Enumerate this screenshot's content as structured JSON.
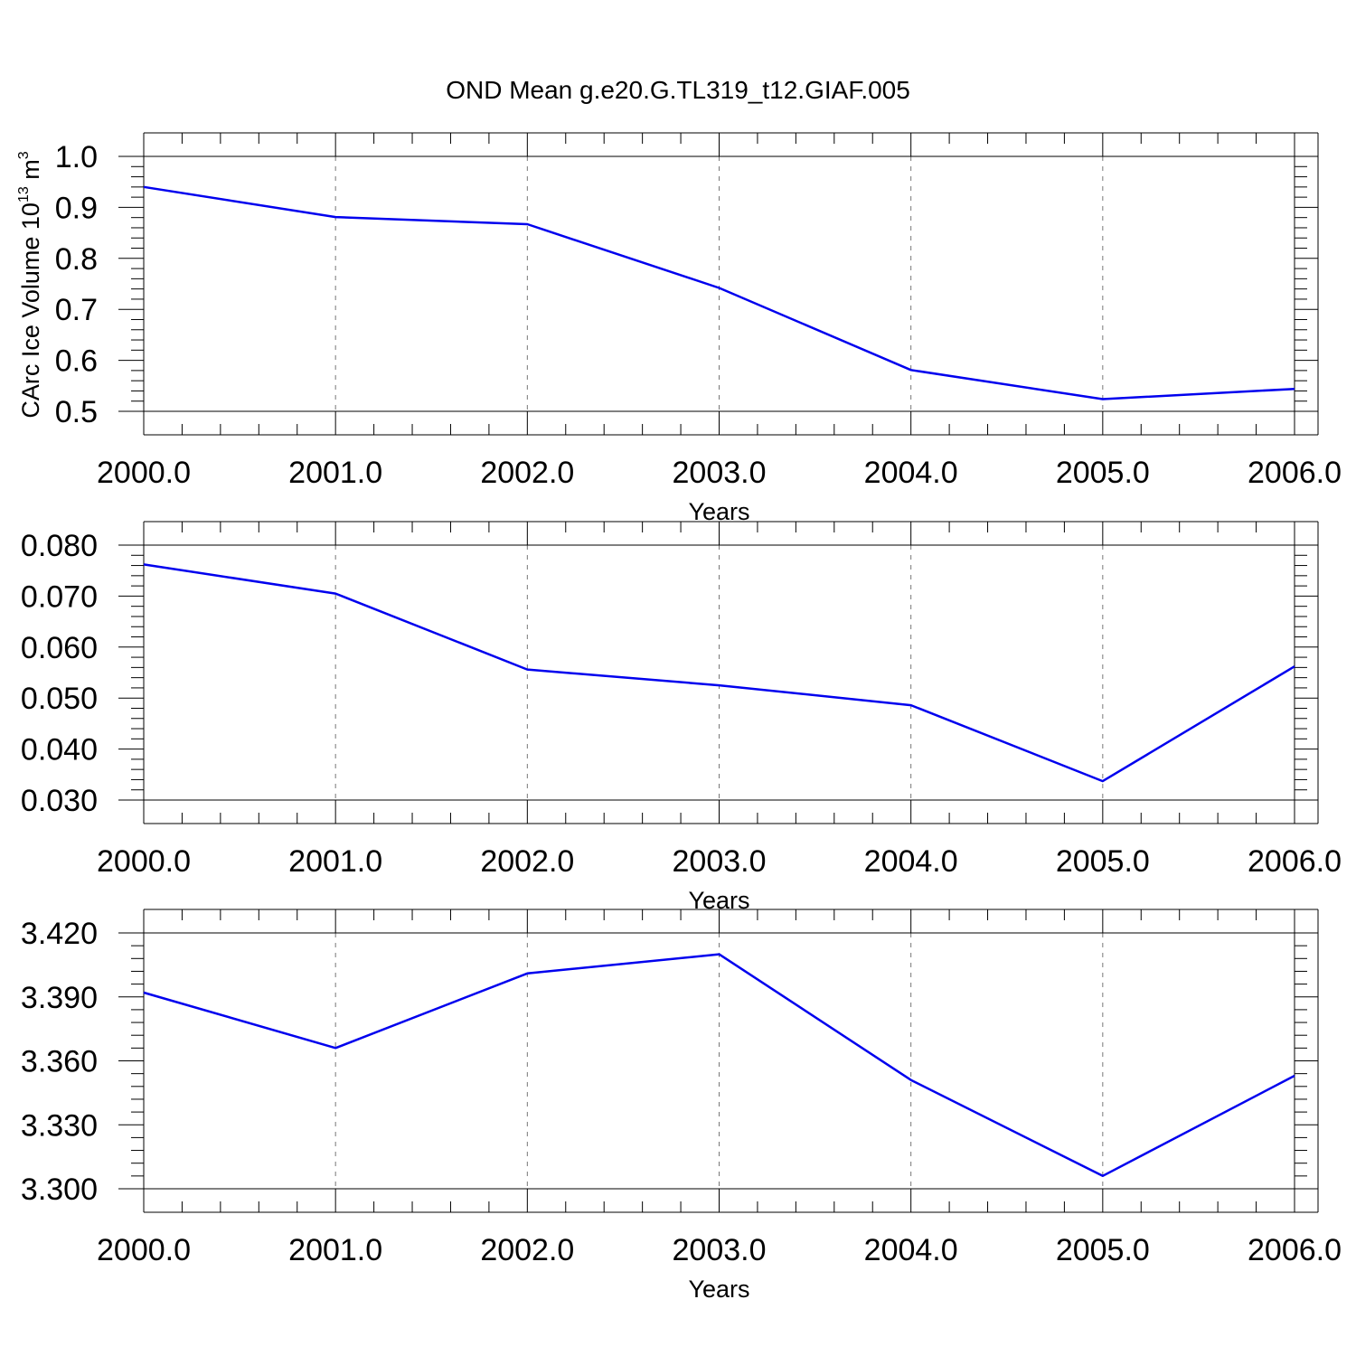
{
  "title": "OND Mean g.e20.G.TL319_t12.GIAF.005",
  "colors": {
    "series": "#0000ee",
    "axis": "#000000",
    "grid": "#777777"
  },
  "chart_data": [
    {
      "type": "line",
      "title": "",
      "xlabel": "Years",
      "ylabel": {
        "text": "CArc Ice Volume 10",
        "sup": "13",
        "tail": " m",
        "sup2": "3"
      },
      "x": [
        2000,
        2001,
        2002,
        2003,
        2004,
        2005,
        2006
      ],
      "xlim": [
        2000,
        2006
      ],
      "xtick_labels": [
        "2000.0",
        "2001.0",
        "2002.0",
        "2003.0",
        "2004.0",
        "2005.0",
        "2006.0"
      ],
      "ylim": [
        0.5,
        1.0
      ],
      "ytick_values": [
        0.5,
        0.6,
        0.7,
        0.8,
        0.9,
        1.0
      ],
      "ytick_labels": [
        "0.5",
        "0.6",
        "0.7",
        "0.8",
        "0.9",
        "1.0"
      ],
      "grid": "vertical dashed at major x ticks",
      "series": [
        {
          "values": [
            0.94,
            0.881,
            0.867,
            0.742,
            0.581,
            0.524,
            0.544
          ]
        }
      ]
    },
    {
      "type": "line",
      "title": "",
      "xlabel": "Years",
      "ylabel": {
        "text": "",
        "sup": "",
        "tail": "",
        "sup2": ""
      },
      "x": [
        2000,
        2001,
        2002,
        2003,
        2004,
        2005,
        2006
      ],
      "xlim": [
        2000,
        2006
      ],
      "xtick_labels": [
        "2000.0",
        "2001.0",
        "2002.0",
        "2003.0",
        "2004.0",
        "2005.0",
        "2006.0"
      ],
      "ylim": [
        0.03,
        0.08
      ],
      "ytick_values": [
        0.03,
        0.04,
        0.05,
        0.06,
        0.07,
        0.08
      ],
      "ytick_labels": [
        "0.030",
        "0.040",
        "0.050",
        "0.060",
        "0.070",
        "0.080"
      ],
      "grid": "vertical dashed at major x ticks",
      "series": [
        {
          "values": [
            0.0762,
            0.0705,
            0.0556,
            0.0525,
            0.0486,
            0.0337,
            0.0562
          ]
        }
      ]
    },
    {
      "type": "line",
      "title": "",
      "xlabel": "Years",
      "ylabel": {
        "text": "",
        "sup": "",
        "tail": "",
        "sup2": ""
      },
      "x": [
        2000,
        2001,
        2002,
        2003,
        2004,
        2005,
        2006
      ],
      "xlim": [
        2000,
        2006
      ],
      "xtick_labels": [
        "2000.0",
        "2001.0",
        "2002.0",
        "2003.0",
        "2004.0",
        "2005.0",
        "2006.0"
      ],
      "ylim": [
        3.3,
        3.42
      ],
      "ytick_values": [
        3.3,
        3.33,
        3.36,
        3.39,
        3.42
      ],
      "ytick_labels": [
        "3.300",
        "3.330",
        "3.360",
        "3.390",
        "3.420"
      ],
      "grid": "vertical dashed at major x ticks",
      "series": [
        {
          "values": [
            3.392,
            3.366,
            3.401,
            3.41,
            3.351,
            3.306,
            3.353
          ]
        }
      ]
    }
  ]
}
